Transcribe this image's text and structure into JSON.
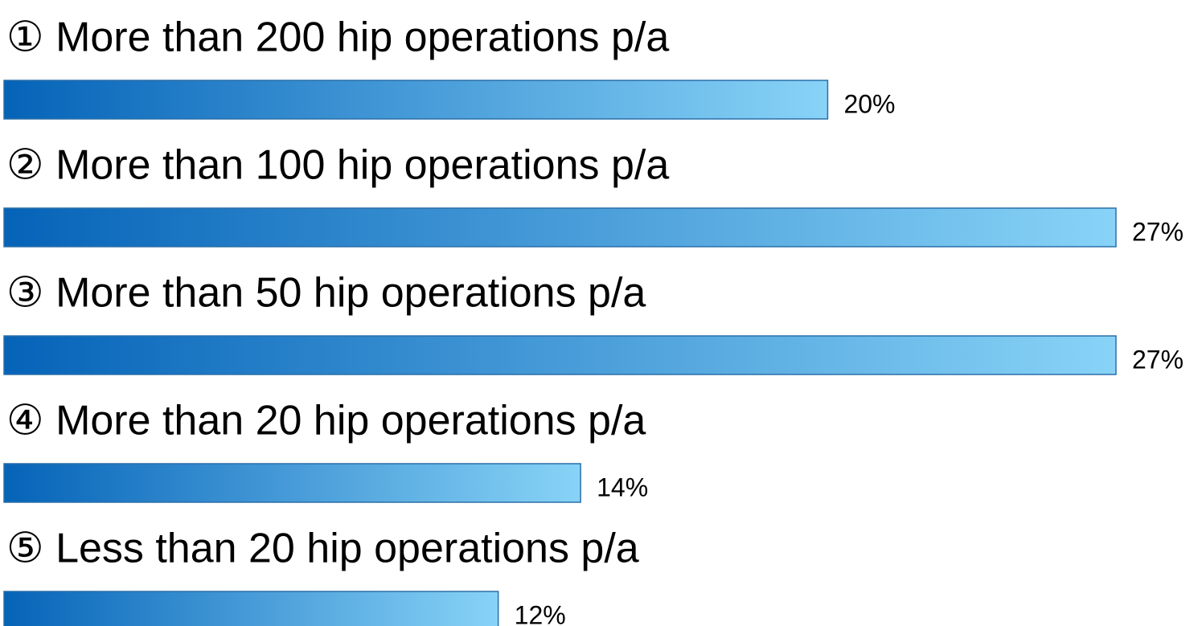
{
  "chart_data": {
    "type": "bar",
    "categories": [
      "① More than 200 hip operations p/a",
      "② More than 100 hip operations p/a",
      "③ More than 50 hip operations p/a",
      "④ More than 20 hip operations p/a",
      "⑤ Less than 20 hip operations p/a"
    ],
    "values": [
      20,
      27,
      27,
      14,
      12
    ],
    "value_labels": [
      "20%",
      "27%",
      "27%",
      "14%",
      "12%"
    ],
    "color": "#0563b8"
  }
}
